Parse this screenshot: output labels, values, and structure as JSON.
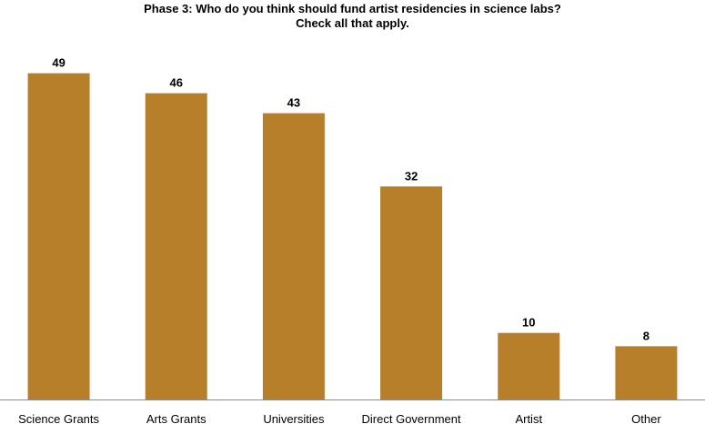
{
  "chart_data": {
    "type": "bar",
    "title": "Phase 3: Who do you think should fund artist residencies in science labs?",
    "subtitle": "Check all that apply.",
    "categories": [
      "Science Grants",
      "Arts Grants",
      "Universities",
      "Direct Government",
      "Artist",
      "Other"
    ],
    "values": [
      49,
      46,
      43,
      32,
      10,
      8
    ],
    "xlabel": "",
    "ylabel": "",
    "ylim": [
      0,
      54
    ],
    "grid": false,
    "legend": "none",
    "bar_color": "#b87f2b",
    "axis_color": "#8c8c8c"
  }
}
